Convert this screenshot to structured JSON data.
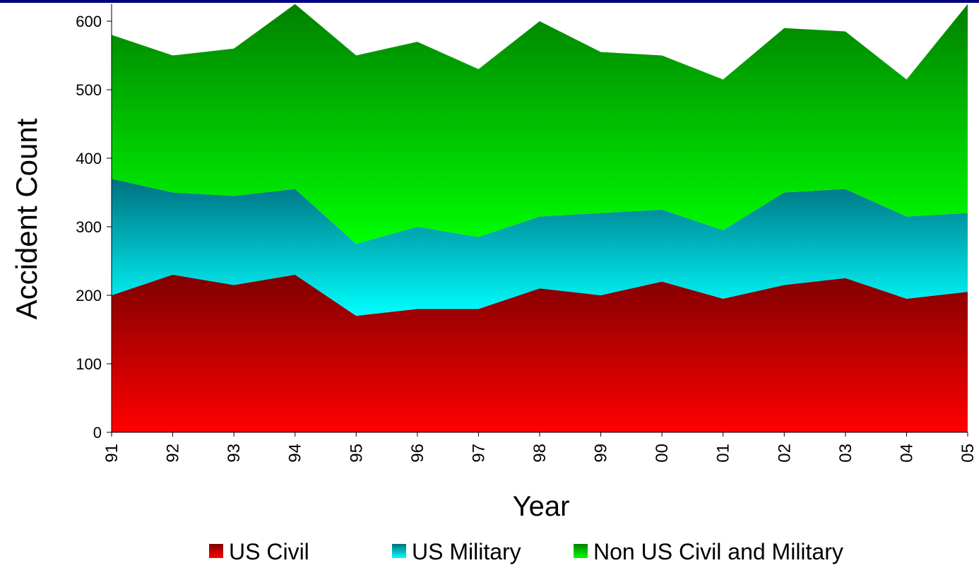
{
  "chart_data": {
    "type": "stacked_area",
    "x_label": "Year",
    "y_label": "Accident Count",
    "categories": [
      "91",
      "92",
      "93",
      "94",
      "95",
      "96",
      "97",
      "98",
      "99",
      "00",
      "01",
      "02",
      "03",
      "04",
      "05"
    ],
    "series": [
      {
        "name": "US Civil",
        "gradient": [
          "#800000",
          "#ff0000"
        ],
        "values": [
          200,
          230,
          215,
          230,
          170,
          180,
          180,
          210,
          200,
          220,
          195,
          215,
          225,
          195,
          205
        ]
      },
      {
        "name": "US Military",
        "gradient": [
          "#007080",
          "#00ffff"
        ],
        "values": [
          170,
          120,
          130,
          125,
          105,
          120,
          105,
          105,
          120,
          105,
          100,
          135,
          130,
          120,
          115
        ]
      },
      {
        "name": "Non US Civil and Military",
        "gradient": [
          "#008000",
          "#00ff00"
        ],
        "values": [
          210,
          200,
          215,
          270,
          275,
          270,
          245,
          285,
          235,
          225,
          220,
          240,
          230,
          200,
          305
        ]
      }
    ],
    "ylim": [
      0,
      625
    ],
    "yticks": [
      0,
      100,
      200,
      300,
      400,
      500,
      600
    ],
    "legend": "bottom"
  }
}
